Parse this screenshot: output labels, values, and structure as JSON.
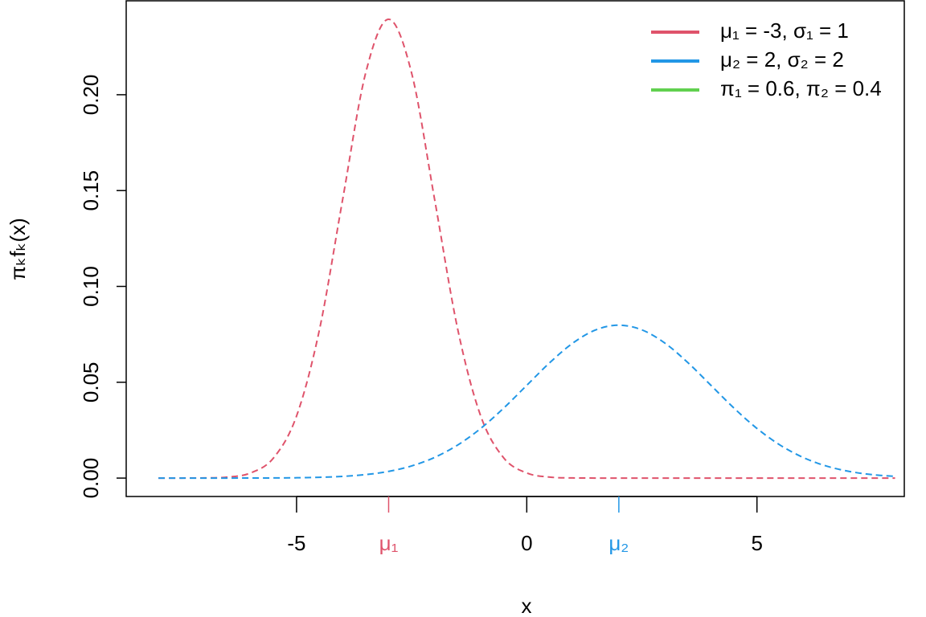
{
  "chart_data": {
    "type": "line",
    "xlabel": "x",
    "ylabel": "πₖfₖ(x)",
    "x": [
      -8,
      -7.5,
      -7,
      -6.5,
      -6,
      -5.5,
      -5,
      -4.5,
      -4,
      -3.5,
      -3,
      -2.5,
      -2,
      -1.5,
      -1,
      -0.5,
      0,
      0.5,
      1,
      1.5,
      2,
      2.5,
      3,
      3.5,
      4,
      4.5,
      5,
      5.5,
      6,
      6.5,
      7,
      7.5,
      8
    ],
    "series": [
      {
        "name": "μ₁ = -3, σ₁ = 1",
        "color": "#DF536B",
        "values": [
          9e-07,
          9.6e-06,
          8e-05,
          0.00052,
          0.00266,
          0.01052,
          0.0324,
          0.07771,
          0.14519,
          0.21124,
          0.23937,
          0.21124,
          0.14519,
          0.07771,
          0.0324,
          0.01052,
          0.00266,
          0.00052,
          8e-05,
          1e-05,
          0,
          0,
          0,
          0,
          0,
          0,
          0,
          0,
          0,
          0,
          0,
          0,
          0
        ]
      },
      {
        "name": "μ₂ = 2, σ₂ = 2",
        "color": "#2297E6",
        "values": [
          3e-07,
          1e-06,
          3.2e-06,
          9.6e-06,
          2.67e-05,
          7.05e-05,
          0.000175,
          0.000406,
          0.000886,
          0.001819,
          0.003506,
          0.006348,
          0.010798,
          0.017255,
          0.025903,
          0.036529,
          0.048394,
          0.060227,
          0.070413,
          0.077333,
          0.079788,
          0.077333,
          0.070413,
          0.060227,
          0.048394,
          0.036529,
          0.025903,
          0.017255,
          0.010798,
          0.006348,
          0.003506,
          0.001819,
          0.000886
        ]
      }
    ],
    "legend_extra": {
      "name": "π₁ = 0.6, π₂ = 0.4",
      "color": "#61D04F"
    },
    "legend": "topright",
    "xlim": [
      -8.7,
      8.2
    ],
    "ylim": [
      -0.0096,
      0.249
    ],
    "xticks": [
      -5,
      0,
      5,
      {
        "value": -3,
        "label": "μ₁",
        "color": "#DF536B"
      },
      {
        "value": 2,
        "label": "μ₂",
        "color": "#2297E6"
      }
    ],
    "yticks": [
      {
        "value": 0,
        "label": "0.00"
      },
      {
        "value": 0.05,
        "label": "0.05"
      },
      {
        "value": 0.1,
        "label": "0.10"
      },
      {
        "value": 0.15,
        "label": "0.15"
      },
      {
        "value": 0.2,
        "label": "0.20"
      }
    ],
    "dashed": true
  }
}
